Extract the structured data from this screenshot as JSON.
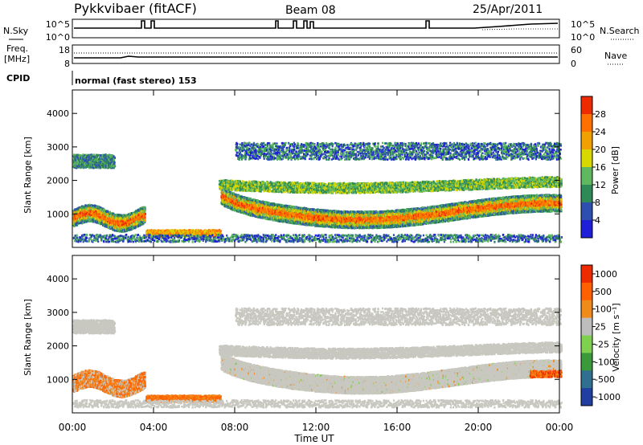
{
  "header": {
    "title": "Pykkvibaer (fitACF)",
    "beam": "Beam 08",
    "date": "25/Apr/2011"
  },
  "status_panels": {
    "nsky_label": "N.Sky",
    "nsearch_label": "N.Search",
    "nsky_ticks": [
      "10^5",
      "10^0"
    ],
    "nsearch_ticks": [
      "10^5",
      "10^0"
    ],
    "freq_label_line1": "Freq.",
    "freq_label_line2": "[MHz]",
    "freq_ticks": [
      "18",
      "8"
    ],
    "nave_label": "Nave",
    "nave_ticks": [
      "60",
      "0"
    ],
    "cpid_label": "CPID",
    "cpid_text": "normal (fast stereo) 153"
  },
  "colors": {
    "power": [
      "#1f1fd9",
      "#2f4fb0",
      "#2e8b57",
      "#5fb85f",
      "#d8d800",
      "#f0a000",
      "#ff7000",
      "#ee2a00"
    ],
    "velocity": [
      "#203fa0",
      "#2f6f8f",
      "#3a9a3a",
      "#7fd04f",
      "#bdbdbd",
      "#f08a1a",
      "#ff6000",
      "#ee2a00"
    ],
    "ground_scatter": "#c8c8c0"
  },
  "chart_data": [
    {
      "type": "heatmap",
      "ylabel": "Slant Range [km]",
      "yticks": [
        "1000",
        "2000",
        "3000",
        "4000"
      ],
      "colorbar_label": "Power [dB]",
      "colorbar_ticks": [
        "4",
        "8",
        "12",
        "16",
        "20",
        "24",
        "28"
      ]
    },
    {
      "type": "heatmap",
      "ylabel": "Slant Range [km]",
      "yticks": [
        "1000",
        "2000",
        "3000",
        "4000"
      ],
      "colorbar_label": "Velocity [m s⁻¹]",
      "colorbar_ticks": [
        "1000",
        "500",
        "100",
        "25",
        "-25",
        "-100",
        "-500",
        "-1000"
      ],
      "xlabel": "Time UT",
      "xticks": [
        "00:00",
        "04:00",
        "08:00",
        "12:00",
        "16:00",
        "20:00",
        "00:00"
      ]
    }
  ]
}
